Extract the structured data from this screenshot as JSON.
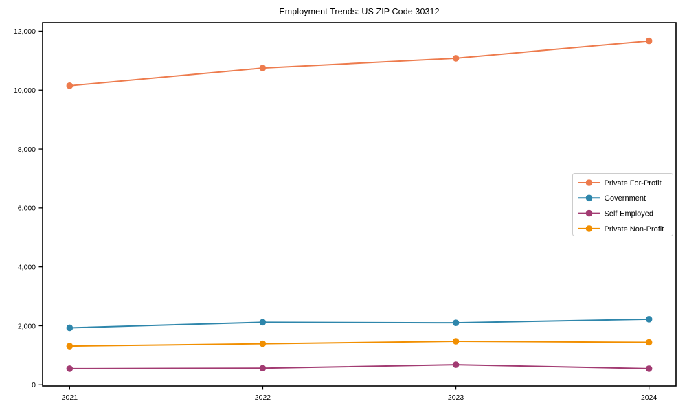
{
  "title": "Employment Trends: US ZIP Code 30312",
  "chart_data": {
    "type": "line",
    "title": "Employment Trends: US ZIP Code 30312",
    "xlabel": "",
    "ylabel": "",
    "x": [
      2021,
      2022,
      2023,
      2024
    ],
    "xticklabels": [
      "2021",
      "2022",
      "2023",
      "2024"
    ],
    "yticks": [
      0,
      2000,
      4000,
      6000,
      8000,
      10000,
      12000
    ],
    "ytick_labels": [
      "0",
      "2,000",
      "4,000",
      "6,000",
      "8,000",
      "10,000",
      "12,000"
    ],
    "xlim": [
      2020.86,
      2024.14
    ],
    "ylim": [
      -40,
      12290
    ],
    "grid": false,
    "marker": "o",
    "legend_position": "center right",
    "series": [
      {
        "name": "Private For-Profit",
        "color": "#ED7B4D",
        "values": [
          10150,
          10750,
          11080,
          11670
        ]
      },
      {
        "name": "Government",
        "color": "#2E86AB",
        "values": [
          1930,
          2120,
          2100,
          2225
        ]
      },
      {
        "name": "Self-Employed",
        "color": "#A23B72",
        "values": [
          545,
          560,
          680,
          545
        ]
      },
      {
        "name": "Private Non-Profit",
        "color": "#F18F01",
        "values": [
          1310,
          1390,
          1475,
          1440
        ]
      }
    ]
  },
  "colors": {
    "spine": "#000000",
    "background": "#ffffff",
    "legend_border": "#cccccc"
  }
}
